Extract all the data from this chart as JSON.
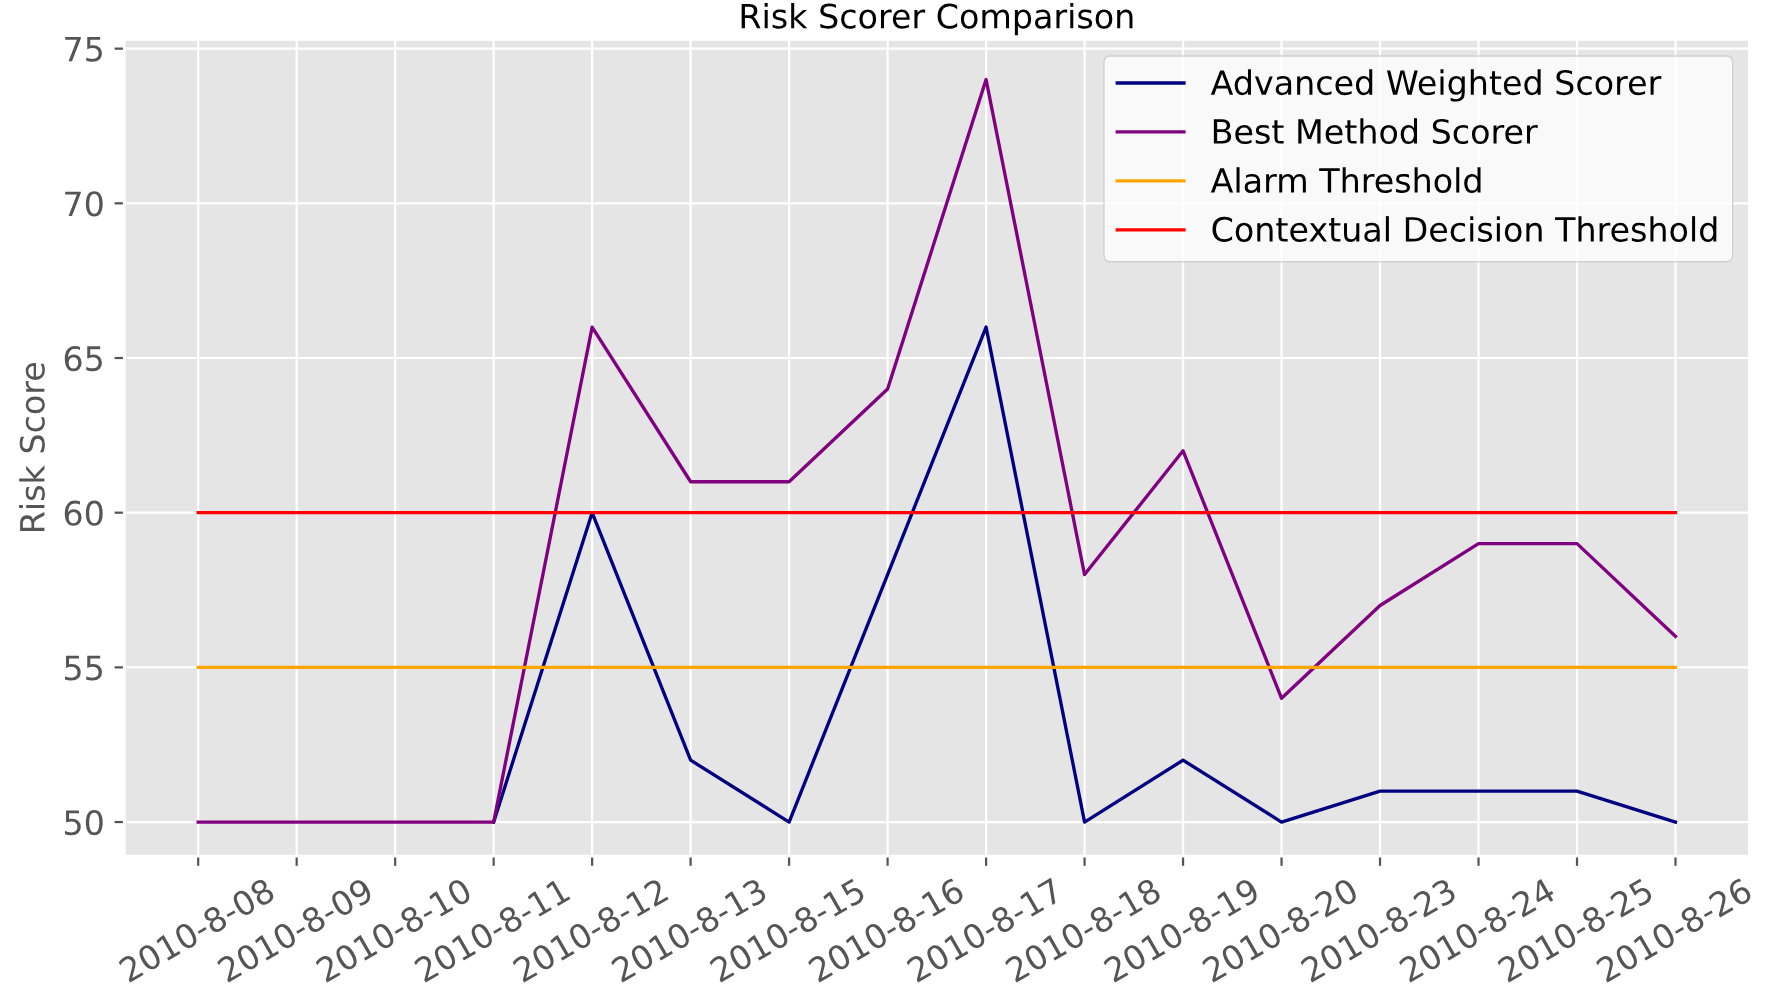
{
  "chart_data": {
    "type": "line",
    "title": "Risk Scorer Comparison",
    "ylabel": "Risk Score",
    "categories": [
      "2010-8-08",
      "2010-8-09",
      "2010-8-10",
      "2010-8-11",
      "2010-8-12",
      "2010-8-13",
      "2010-8-15",
      "2010-8-16",
      "2010-8-17",
      "2010-8-18",
      "2010-8-19",
      "2010-8-20",
      "2010-8-23",
      "2010-8-24",
      "2010-8-25",
      "2010-8-26"
    ],
    "series": [
      {
        "name": "Advanced Weighted Scorer",
        "color": "#000080",
        "values": [
          null,
          null,
          null,
          50,
          60,
          52,
          50,
          58,
          66,
          50,
          52,
          50,
          51,
          51,
          51,
          50
        ]
      },
      {
        "name": "Best Method Scorer",
        "color": "#800080",
        "values": [
          50,
          50,
          50,
          50,
          66,
          61,
          61,
          64,
          74,
          58,
          62,
          54,
          57,
          59,
          59,
          56
        ]
      }
    ],
    "ref_lines": [
      {
        "axis": "y",
        "value": 55,
        "label": "Alarm Threshold",
        "color": "#ffa500"
      },
      {
        "axis": "y",
        "value": 60,
        "label": "Contextual Decision Threshold",
        "color": "#ff0000"
      }
    ],
    "ylim": [
      48.9,
      75.3
    ],
    "yticks": [
      50,
      55,
      60,
      65,
      70,
      75
    ],
    "grid": true,
    "legend": "top right"
  }
}
